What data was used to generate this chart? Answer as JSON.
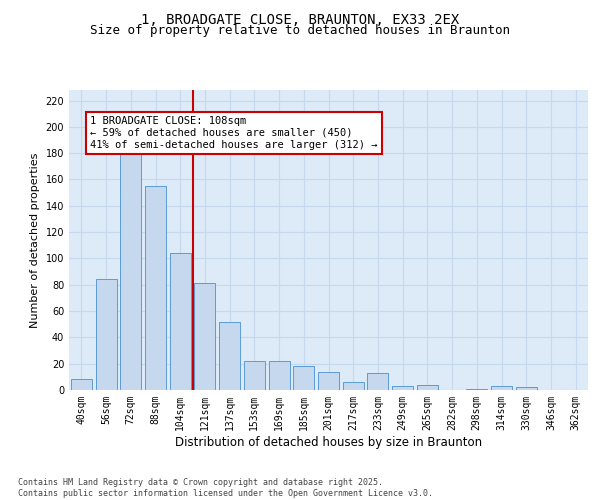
{
  "title": "1, BROADGATE CLOSE, BRAUNTON, EX33 2EX",
  "subtitle": "Size of property relative to detached houses in Braunton",
  "xlabel": "Distribution of detached houses by size in Braunton",
  "ylabel": "Number of detached properties",
  "categories": [
    "40sqm",
    "56sqm",
    "72sqm",
    "88sqm",
    "104sqm",
    "121sqm",
    "137sqm",
    "153sqm",
    "169sqm",
    "185sqm",
    "201sqm",
    "217sqm",
    "233sqm",
    "249sqm",
    "265sqm",
    "282sqm",
    "298sqm",
    "314sqm",
    "330sqm",
    "346sqm",
    "362sqm"
  ],
  "values": [
    8,
    84,
    180,
    155,
    104,
    81,
    52,
    22,
    22,
    18,
    14,
    6,
    13,
    3,
    4,
    0,
    1,
    3,
    2,
    0,
    0
  ],
  "bar_color": "#c5d8ed",
  "bar_edge_color": "#5b9bd5",
  "grid_color": "#c5d8ed",
  "background_color": "#ddeaf8",
  "vline_x": 4.5,
  "vline_color": "#cc0000",
  "annotation_text": "1 BROADGATE CLOSE: 108sqm\n← 59% of detached houses are smaller (450)\n41% of semi-detached houses are larger (312) →",
  "annotation_box_color": "#cc0000",
  "ylim": [
    0,
    228
  ],
  "yticks": [
    0,
    20,
    40,
    60,
    80,
    100,
    120,
    140,
    160,
    180,
    200,
    220
  ],
  "footer": "Contains HM Land Registry data © Crown copyright and database right 2025.\nContains public sector information licensed under the Open Government Licence v3.0.",
  "title_fontsize": 10,
  "subtitle_fontsize": 9,
  "xlabel_fontsize": 8.5,
  "ylabel_fontsize": 8,
  "tick_fontsize": 7,
  "annotation_fontsize": 7.5,
  "footer_fontsize": 6
}
